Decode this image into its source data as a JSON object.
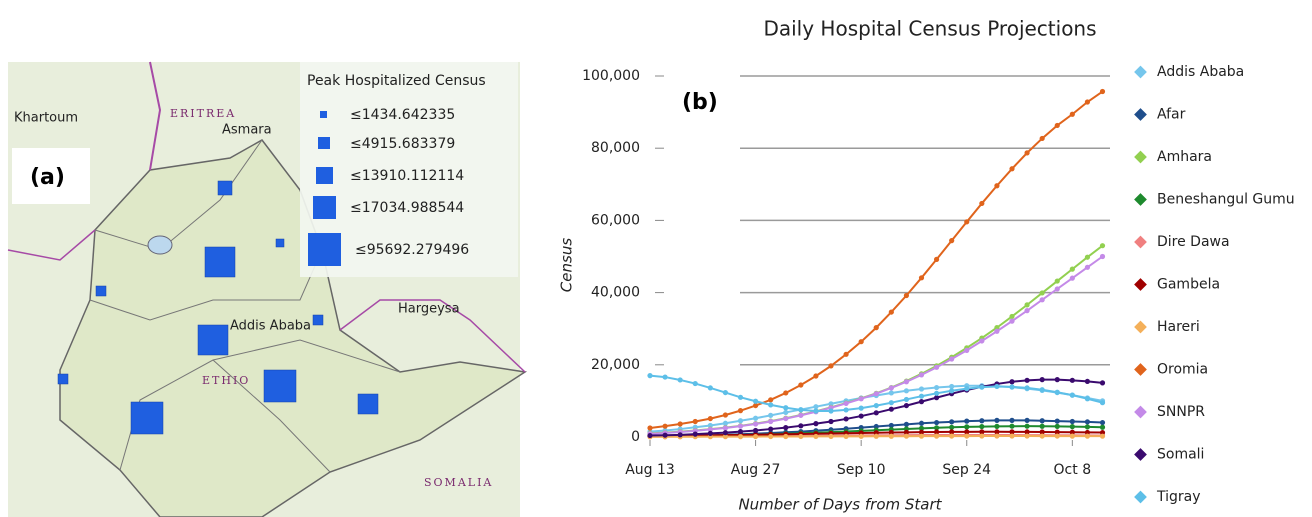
{
  "map": {
    "panel_label": "(a)",
    "legend_title": "Peak Hospitalized Census",
    "legend_items": [
      "≤1434.642335",
      "≤4915.683379",
      "≤13910.112114",
      "≤17034.988544",
      "≤95692.279496"
    ],
    "places": [
      "Khartoum",
      "ERITREA",
      "Asmara",
      "Hargeysa",
      "Addis Ababa",
      "ETHIO",
      "SOMALIA"
    ]
  },
  "chart_data": {
    "type": "line",
    "title": "Daily Hospital Census Projections",
    "panel_label": "(b)",
    "x_label": "Number of Days from Start",
    "y_label": "Census",
    "x": [
      0,
      2,
      4,
      6,
      8,
      10,
      12,
      14,
      16,
      18,
      20,
      22,
      24,
      26,
      28,
      30,
      32,
      34,
      36,
      38,
      40,
      42,
      44,
      46,
      48,
      50,
      52,
      54,
      56,
      58,
      60
    ],
    "xlim": [
      0,
      60
    ],
    "xticks": [
      {
        "value": 0,
        "label": "Aug 13"
      },
      {
        "value": 14,
        "label": "Aug 27"
      },
      {
        "value": 28,
        "label": "Sep 10"
      },
      {
        "value": 42,
        "label": "Sep 24"
      },
      {
        "value": 56,
        "label": "Oct 8"
      }
    ],
    "ylim": [
      0,
      100000
    ],
    "yticks": [
      0,
      {
        "value": 20000,
        "label": "20,000"
      },
      {
        "value": 40000,
        "label": "40,000"
      },
      {
        "value": 60000,
        "label": "60,000"
      },
      {
        "value": 80000,
        "label": "80,000"
      },
      {
        "value": 100000,
        "label": "100,000"
      }
    ],
    "grid": true,
    "series": [
      {
        "name": "Addis Ababa",
        "color": "#75c6ec",
        "values": [
          1500,
          1800,
          2200,
          2700,
          3200,
          3800,
          4500,
          5200,
          6000,
          6800,
          7600,
          8400,
          9200,
          10000,
          10800,
          11500,
          12200,
          12800,
          13300,
          13700,
          14000,
          14200,
          14200,
          14100,
          13800,
          13400,
          12900,
          12300,
          11600,
          10800,
          10000
        ]
      },
      {
        "name": "Afar",
        "color": "#1f4e8c",
        "values": [
          200,
          250,
          320,
          400,
          500,
          620,
          760,
          920,
          1100,
          1300,
          1500,
          1750,
          2000,
          2300,
          2600,
          2900,
          3200,
          3500,
          3800,
          4000,
          4200,
          4400,
          4500,
          4600,
          4600,
          4600,
          4500,
          4400,
          4300,
          4200,
          4000
        ]
      },
      {
        "name": "Amhara",
        "color": "#92d050",
        "values": [
          1000,
          1200,
          1500,
          1800,
          2200,
          2600,
          3100,
          3700,
          4400,
          5200,
          6100,
          7100,
          8200,
          9400,
          10700,
          12100,
          13700,
          15500,
          17500,
          19700,
          22100,
          24700,
          27400,
          30300,
          33400,
          36600,
          39900,
          43200,
          46500,
          49800,
          53000
        ]
      },
      {
        "name": "Beneshangul Gumu",
        "color": "#1e8a2e",
        "values": [
          150,
          190,
          240,
          300,
          370,
          450,
          540,
          640,
          760,
          890,
          1030,
          1180,
          1340,
          1510,
          1690,
          1870,
          2050,
          2230,
          2400,
          2550,
          2690,
          2800,
          2890,
          2950,
          2990,
          3000,
          2980,
          2940,
          2880,
          2800,
          2700
        ]
      },
      {
        "name": "Dire Dawa",
        "color": "#f08080",
        "values": [
          100,
          110,
          130,
          150,
          170,
          190,
          210,
          240,
          270,
          300,
          330,
          360,
          390,
          420,
          450,
          480,
          500,
          520,
          540,
          550,
          560,
          560,
          560,
          550,
          540,
          530,
          510,
          490,
          470,
          450,
          430
        ]
      },
      {
        "name": "Gambela",
        "color": "#a00000",
        "values": [
          300,
          330,
          370,
          410,
          460,
          510,
          570,
          630,
          700,
          770,
          840,
          910,
          980,
          1050,
          1120,
          1180,
          1240,
          1290,
          1340,
          1380,
          1410,
          1430,
          1440,
          1440,
          1430,
          1410,
          1380,
          1350,
          1310,
          1270,
          1230
        ]
      },
      {
        "name": "Hareri",
        "color": "#f4b05a",
        "values": [
          50,
          60,
          70,
          80,
          90,
          100,
          110,
          120,
          130,
          140,
          150,
          160,
          170,
          180,
          190,
          200,
          210,
          220,
          230,
          240,
          250,
          250,
          260,
          260,
          260,
          260,
          250,
          250,
          240,
          240,
          230
        ]
      },
      {
        "name": "Oromia",
        "color": "#e0641c",
        "values": [
          2500,
          3000,
          3600,
          4300,
          5100,
          6100,
          7300,
          8700,
          10300,
          12200,
          14400,
          16900,
          19700,
          22900,
          26400,
          30300,
          34600,
          39200,
          44100,
          49200,
          54400,
          59600,
          64700,
          69600,
          74300,
          78700,
          82700,
          86300,
          89400,
          92800,
          95700
        ]
      },
      {
        "name": "SNNPR",
        "color": "#c48ae8",
        "values": [
          900,
          1100,
          1400,
          1700,
          2100,
          2500,
          3000,
          3600,
          4300,
          5100,
          6000,
          7000,
          8100,
          9300,
          10600,
          12000,
          13600,
          15300,
          17200,
          19300,
          21600,
          24000,
          26600,
          29300,
          32100,
          35000,
          38000,
          41000,
          44000,
          47000,
          50000
        ]
      },
      {
        "name": "Somali",
        "color": "#3a0a6e",
        "values": [
          400,
          500,
          600,
          800,
          1000,
          1200,
          1500,
          1800,
          2200,
          2600,
          3100,
          3700,
          4300,
          5000,
          5800,
          6700,
          7700,
          8700,
          9800,
          10900,
          12000,
          13000,
          13900,
          14700,
          15300,
          15700,
          15900,
          15900,
          15700,
          15400,
          15000
        ]
      },
      {
        "name": "Tigray",
        "color": "#5dbfe8",
        "values": [
          17000,
          16600,
          15800,
          14800,
          13600,
          12300,
          11000,
          9900,
          8900,
          8100,
          7500,
          7200,
          7200,
          7500,
          8000,
          8700,
          9500,
          10400,
          11300,
          12100,
          12800,
          13400,
          13800,
          14000,
          13900,
          13600,
          13100,
          12400,
          11600,
          10600,
          9500
        ]
      }
    ]
  }
}
